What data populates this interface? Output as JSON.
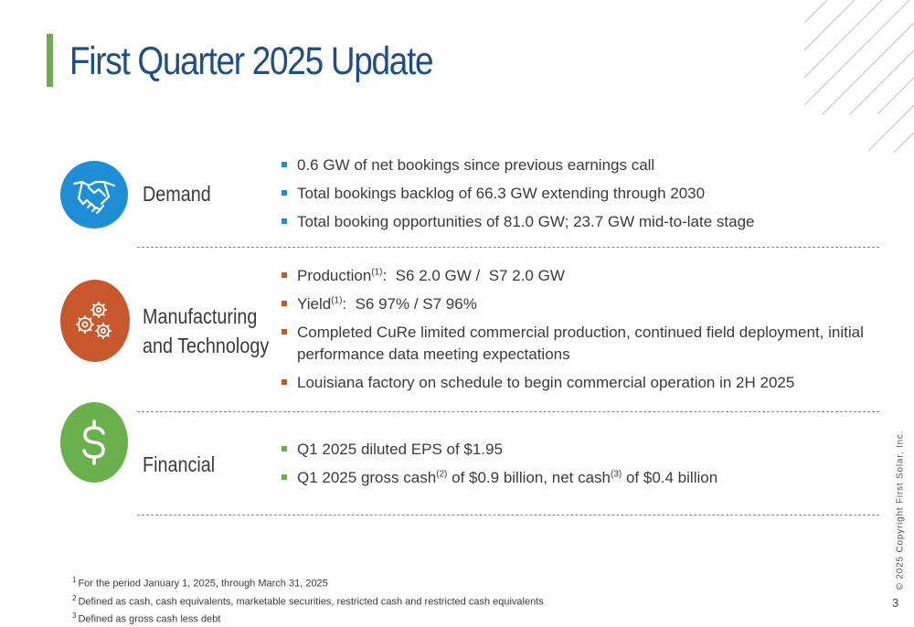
{
  "title": "First Quarter 2025 Update",
  "colors": {
    "title": "#1d4e89",
    "title_bar": "#6ab04c",
    "demand": "#1e8fd6",
    "manufacturing": "#c8572c",
    "financial": "#6ab04c"
  },
  "sections": {
    "demand": {
      "icon": "handshake-icon",
      "label": "Demand",
      "bullets": [
        "0.6 GW of net bookings since previous earnings call",
        "Total bookings backlog of 66.3 GW extending through 2030",
        "Total booking opportunities of 81.0 GW; 23.7 GW mid-to-late stage"
      ]
    },
    "manufacturing": {
      "icon": "gears-icon",
      "label_line1": "Manufacturing",
      "label_line2": "and Technology",
      "production_prefix": "Production",
      "production_ref": "(1)",
      "production_suffix": ":  S6 2.0 GW /  S7 2.0 GW",
      "yield_prefix": "Yield",
      "yield_ref": "(1)",
      "yield_suffix": ":  S6 97% / S7 96%",
      "cure": "Completed CuRe limited commercial production, continued field deployment, initial performance data meeting expectations",
      "louisiana": "Louisiana factory on schedule to begin commercial operation in 2H 2025"
    },
    "financial": {
      "icon": "dollar-icon",
      "label": "Financial",
      "eps": "Q1 2025 diluted EPS of $1.95",
      "cash_part1": "Q1 2025 gross cash",
      "cash_ref1": "(2)",
      "cash_part2": " of $0.9 billion, net cash",
      "cash_ref2": "(3)",
      "cash_part3": " of $0.4 billion"
    }
  },
  "footnotes": [
    {
      "num": "1",
      "text": "For the period January 1, 2025, through March 31, 2025"
    },
    {
      "num": "2",
      "text": "Defined as cash, cash equivalents, marketable securities, restricted cash and restricted cash equivalents"
    },
    {
      "num": "3",
      "text": "Defined as gross cash less debt"
    }
  ],
  "copyright": "© 2025 Copyright First Solar, Inc.",
  "page_number": "3"
}
